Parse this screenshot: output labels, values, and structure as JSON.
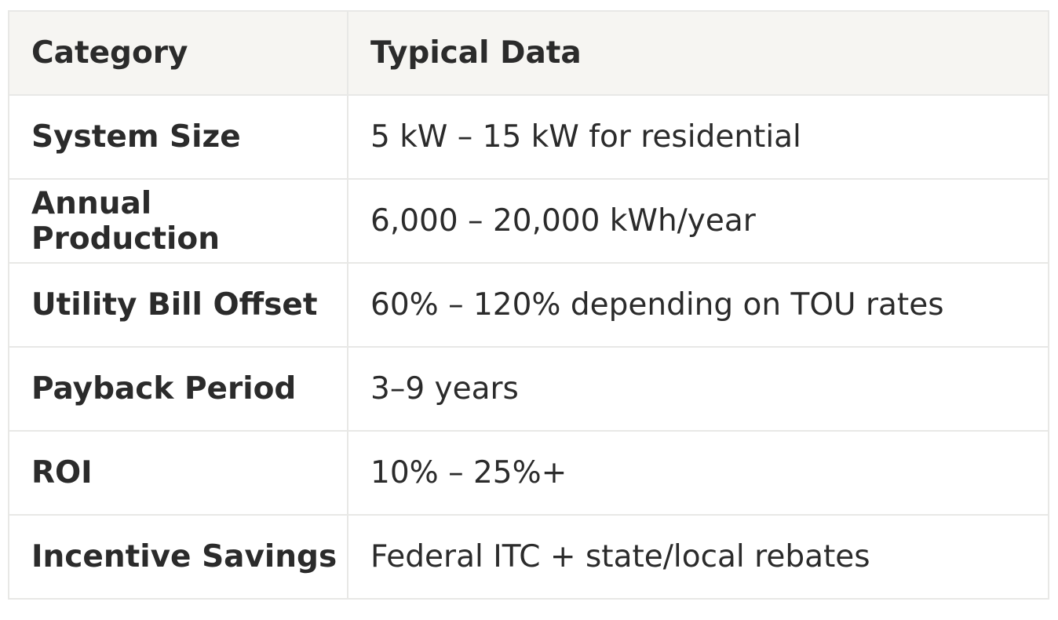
{
  "table": {
    "header": [
      "Category",
      "Typical Data"
    ],
    "rows": [
      [
        "System Size",
        "5 kW – 15 kW for residential"
      ],
      [
        "Annual Production",
        "6,000 – 20,000 kWh/year"
      ],
      [
        "Utility Bill Offset",
        "60% – 120% depending on TOU rates"
      ],
      [
        "Payback Period",
        "3–9 years"
      ],
      [
        "ROI",
        "10% – 25%+"
      ],
      [
        "Incentive Savings",
        "Federal ITC + state/local rebates"
      ]
    ]
  }
}
